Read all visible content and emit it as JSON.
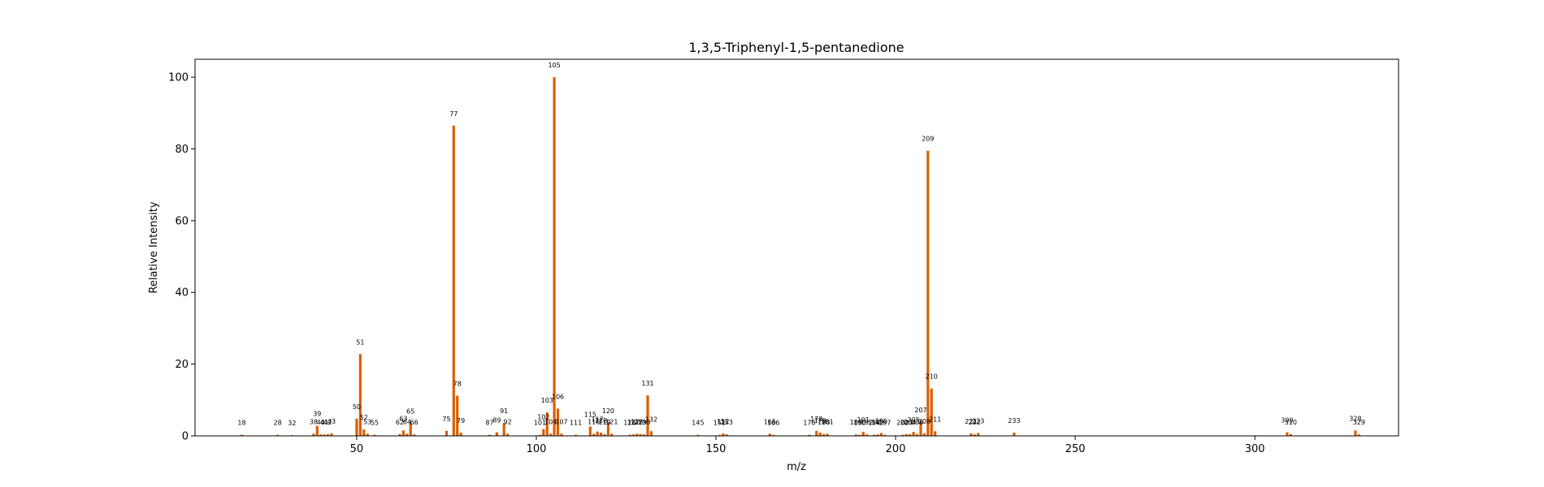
{
  "chart_data": {
    "type": "bar",
    "title": "1,3,5-Triphenyl-1,5-pentanedione",
    "xlabel": "m/z",
    "ylabel": "Relative Intensity",
    "xlim": [
      5,
      340
    ],
    "ylim": [
      0,
      105
    ],
    "xticks": [
      50,
      100,
      150,
      200,
      250,
      300
    ],
    "yticks": [
      0,
      20,
      40,
      60,
      80,
      100
    ],
    "bar_color": "#d95f02",
    "grid": false,
    "peaks": [
      {
        "x": 18,
        "y": 0.3,
        "label": "18"
      },
      {
        "x": 28,
        "y": 0.3,
        "label": "28"
      },
      {
        "x": 32,
        "y": 0.2,
        "label": "32"
      },
      {
        "x": 38,
        "y": 0.6,
        "label": "38"
      },
      {
        "x": 39,
        "y": 2.8,
        "label": "39"
      },
      {
        "x": 40,
        "y": 0.4,
        "label": "40"
      },
      {
        "x": 41,
        "y": 0.4,
        "label": "41"
      },
      {
        "x": 42,
        "y": 0.5,
        "label": "42"
      },
      {
        "x": 43,
        "y": 0.7,
        "label": "43"
      },
      {
        "x": 50,
        "y": 4.8,
        "label": "50"
      },
      {
        "x": 51,
        "y": 22.8,
        "label": "51"
      },
      {
        "x": 52,
        "y": 1.8,
        "label": "52"
      },
      {
        "x": 53,
        "y": 0.6,
        "label": "53"
      },
      {
        "x": 55,
        "y": 0.3,
        "label": "55"
      },
      {
        "x": 62,
        "y": 0.5,
        "label": "62"
      },
      {
        "x": 63,
        "y": 1.5,
        "label": "63"
      },
      {
        "x": 64,
        "y": 0.6,
        "label": "64"
      },
      {
        "x": 65,
        "y": 3.5,
        "label": "65"
      },
      {
        "x": 66,
        "y": 0.4,
        "label": "66"
      },
      {
        "x": 75,
        "y": 1.4,
        "label": "75"
      },
      {
        "x": 77,
        "y": 86.5,
        "label": "77"
      },
      {
        "x": 78,
        "y": 11.2,
        "label": "78"
      },
      {
        "x": 79,
        "y": 0.9,
        "label": "79"
      },
      {
        "x": 87,
        "y": 0.3,
        "label": "87"
      },
      {
        "x": 89,
        "y": 1.0,
        "label": "89"
      },
      {
        "x": 91,
        "y": 3.6,
        "label": "91"
      },
      {
        "x": 92,
        "y": 0.6,
        "label": "92"
      },
      {
        "x": 101,
        "y": 0.3,
        "label": "101"
      },
      {
        "x": 102,
        "y": 1.9,
        "label": "102"
      },
      {
        "x": 103,
        "y": 6.6,
        "label": "103"
      },
      {
        "x": 104,
        "y": 0.6,
        "label": "104"
      },
      {
        "x": 105,
        "y": 100,
        "label": "105"
      },
      {
        "x": 106,
        "y": 7.6,
        "label": "106"
      },
      {
        "x": 107,
        "y": 0.6,
        "label": "107"
      },
      {
        "x": 111,
        "y": 0.3,
        "label": "111"
      },
      {
        "x": 115,
        "y": 2.6,
        "label": "115"
      },
      {
        "x": 116,
        "y": 0.6,
        "label": "116"
      },
      {
        "x": 117,
        "y": 1.2,
        "label": "117"
      },
      {
        "x": 118,
        "y": 0.9,
        "label": "118"
      },
      {
        "x": 119,
        "y": 0.5,
        "label": "119"
      },
      {
        "x": 120,
        "y": 3.6,
        "label": "120"
      },
      {
        "x": 121,
        "y": 0.6,
        "label": "121"
      },
      {
        "x": 126,
        "y": 0.3,
        "label": "126"
      },
      {
        "x": 127,
        "y": 0.4,
        "label": "127"
      },
      {
        "x": 128,
        "y": 0.6,
        "label": "128"
      },
      {
        "x": 129,
        "y": 0.5,
        "label": "129"
      },
      {
        "x": 130,
        "y": 0.4,
        "label": "130"
      },
      {
        "x": 131,
        "y": 11.3,
        "label": "131"
      },
      {
        "x": 132,
        "y": 1.3,
        "label": "132"
      },
      {
        "x": 145,
        "y": 0.3,
        "label": "145"
      },
      {
        "x": 151,
        "y": 0.3,
        "label": "151"
      },
      {
        "x": 152,
        "y": 0.7,
        "label": "152"
      },
      {
        "x": 153,
        "y": 0.4,
        "label": "153"
      },
      {
        "x": 165,
        "y": 0.6,
        "label": "165"
      },
      {
        "x": 166,
        "y": 0.3,
        "label": "166"
      },
      {
        "x": 176,
        "y": 0.3,
        "label": "176"
      },
      {
        "x": 178,
        "y": 1.4,
        "label": "178"
      },
      {
        "x": 179,
        "y": 0.9,
        "label": "179"
      },
      {
        "x": 180,
        "y": 0.5,
        "label": "180"
      },
      {
        "x": 181,
        "y": 0.6,
        "label": "181"
      },
      {
        "x": 189,
        "y": 0.4,
        "label": "189"
      },
      {
        "x": 190,
        "y": 0.3,
        "label": "190"
      },
      {
        "x": 191,
        "y": 1.1,
        "label": "191"
      },
      {
        "x": 192,
        "y": 0.4,
        "label": "192"
      },
      {
        "x": 194,
        "y": 0.3,
        "label": "194"
      },
      {
        "x": 195,
        "y": 0.4,
        "label": "195"
      },
      {
        "x": 196,
        "y": 0.8,
        "label": "196"
      },
      {
        "x": 197,
        "y": 0.3,
        "label": "197"
      },
      {
        "x": 202,
        "y": 0.3,
        "label": "202"
      },
      {
        "x": 203,
        "y": 0.5,
        "label": "203"
      },
      {
        "x": 204,
        "y": 0.5,
        "label": "204"
      },
      {
        "x": 205,
        "y": 1.1,
        "label": "205"
      },
      {
        "x": 206,
        "y": 0.5,
        "label": "206"
      },
      {
        "x": 207,
        "y": 3.9,
        "label": "207"
      },
      {
        "x": 208,
        "y": 0.7,
        "label": "208"
      },
      {
        "x": 209,
        "y": 79.5,
        "label": "209"
      },
      {
        "x": 210,
        "y": 13.2,
        "label": "210"
      },
      {
        "x": 211,
        "y": 1.3,
        "label": "211"
      },
      {
        "x": 221,
        "y": 0.7,
        "label": "221"
      },
      {
        "x": 222,
        "y": 0.4,
        "label": "222"
      },
      {
        "x": 223,
        "y": 0.8,
        "label": "223"
      },
      {
        "x": 233,
        "y": 0.9,
        "label": "233"
      },
      {
        "x": 309,
        "y": 1.0,
        "label": "309"
      },
      {
        "x": 310,
        "y": 0.5,
        "label": "310"
      },
      {
        "x": 328,
        "y": 1.5,
        "label": "328"
      },
      {
        "x": 329,
        "y": 0.4,
        "label": "329"
      }
    ]
  }
}
